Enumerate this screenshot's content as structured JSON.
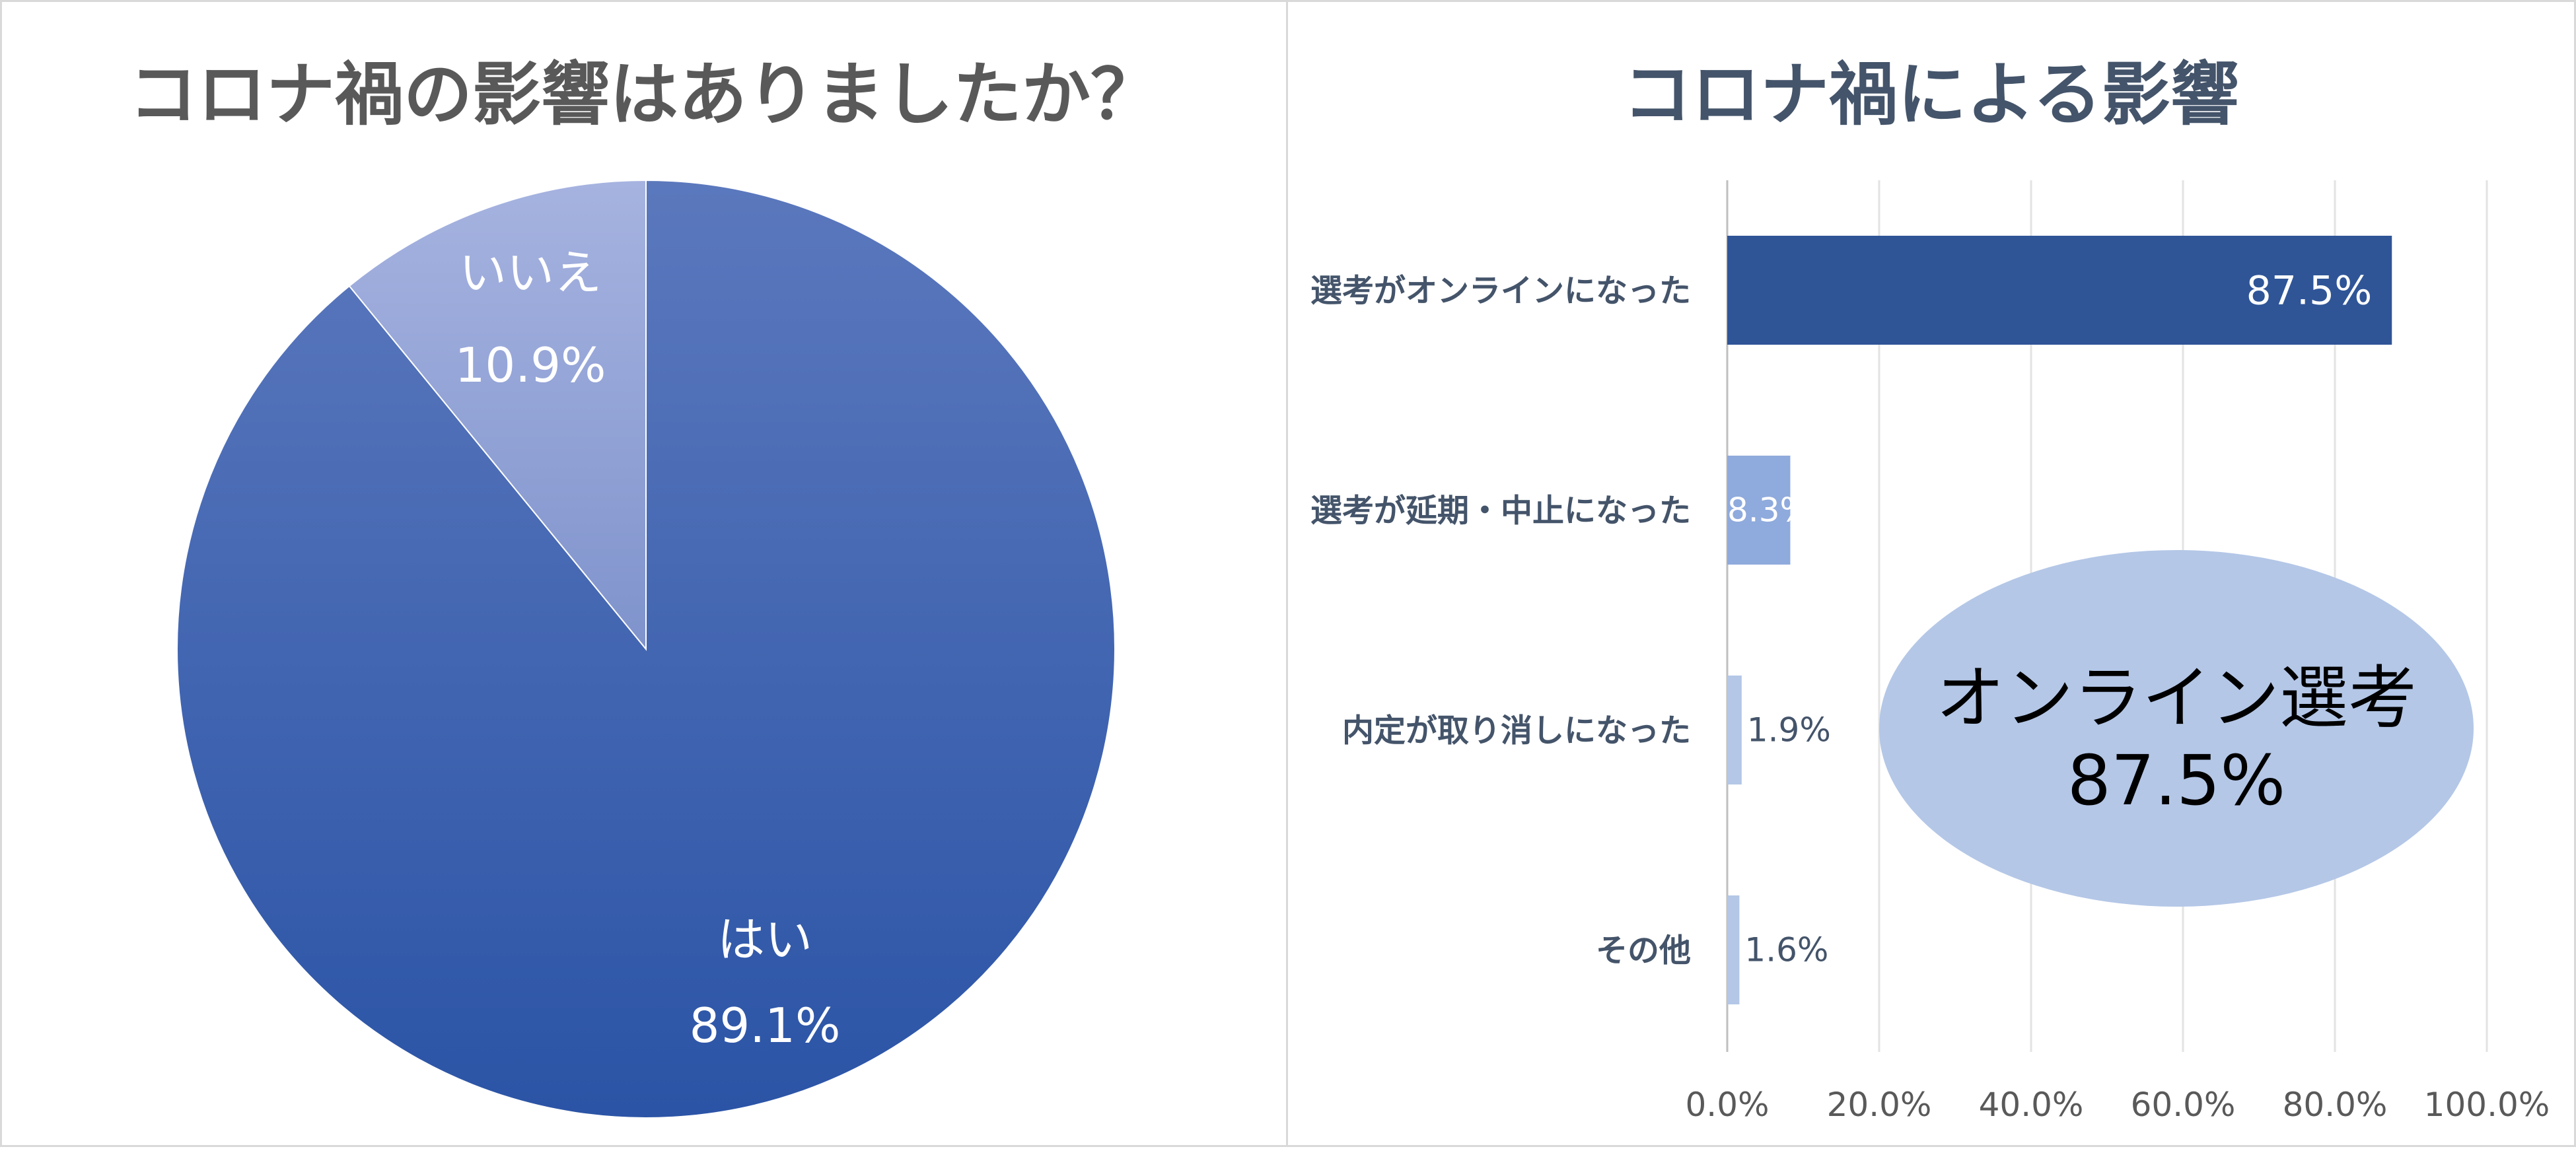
{
  "chart_data": [
    {
      "type": "pie",
      "title": "コロナ禍の影響はありましたか？",
      "slices": [
        {
          "label": "はい",
          "value": 89.1,
          "value_label": "89.1%",
          "color": "#2f55a4"
        },
        {
          "label": "いいえ",
          "value": 10.9,
          "value_label": "10.9%",
          "color": "#97a8da"
        }
      ]
    },
    {
      "type": "bar",
      "orientation": "horizontal",
      "title": "コロナ禍による影響",
      "categories": [
        "選考がオンラインになった",
        "選考が延期・中止になった",
        "内定が取り消しになった",
        "その他"
      ],
      "values": [
        87.5,
        8.3,
        1.9,
        1.6
      ],
      "value_labels": [
        "87.5%",
        "8.3%",
        "1.9%",
        "1.6%"
      ],
      "colors": [
        "#2f5597",
        "#8faadc",
        "#b4c7e7",
        "#b4c7e7"
      ],
      "xlim": [
        0,
        100
      ],
      "xticks": [
        0,
        20,
        40,
        60,
        80,
        100
      ],
      "xtick_labels": [
        "0.0%",
        "20.0%",
        "40.0%",
        "60.0%",
        "80.0%",
        "100.0%"
      ],
      "grid": true,
      "callout": {
        "line1": "オンライン選考",
        "line2": "87.5%",
        "color": "#b4c7e7"
      }
    }
  ]
}
